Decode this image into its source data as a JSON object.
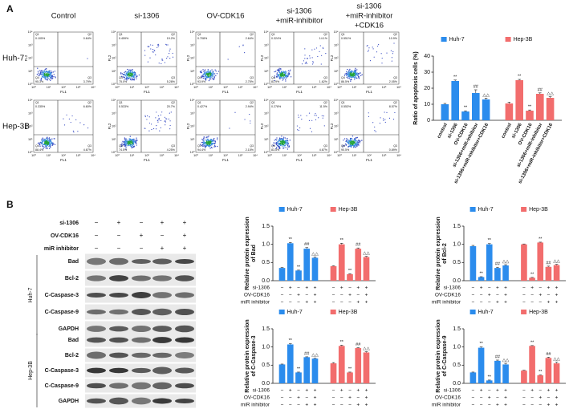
{
  "panels": {
    "a": "A",
    "b": "B"
  },
  "flow": {
    "columns": [
      [
        "Control"
      ],
      [
        "si-1306"
      ],
      [
        "OV-CDK16"
      ],
      [
        "si-1306",
        "+miR-inhibitor"
      ],
      [
        "si-1306",
        "+miR-inhibitor",
        "+CDK16"
      ]
    ],
    "quadrant_names": [
      "Q1",
      "Q2",
      "Q3",
      "Q4"
    ],
    "axis_ticks": [
      "10⁰",
      "10¹",
      "10²",
      "10³",
      "10⁴"
    ],
    "x_label": "FL1",
    "y_label": "FL2",
    "rows": [
      {
        "name": "Huh-7",
        "plots": [
          [
            "0.105%",
            "0.64%",
            "3.79%",
            "95.3%"
          ],
          [
            "0.459%",
            "19.2%",
            "5.28%",
            "75.0%"
          ],
          [
            "0.708%",
            "2.64%",
            "2.75%",
            "93.9%"
          ],
          [
            "0.324%",
            "14.1%",
            "1.62%",
            "83.9%"
          ],
          [
            "0.551%",
            "10.9%",
            "2.05%",
            "86.5%"
          ]
        ]
      },
      {
        "name": "Hep-3B",
        "plots": [
          [
            "0.335%",
            "6.60%",
            "4.67%",
            "88.4%"
          ],
          [
            "0.533%",
            "20.7%",
            "4.25%",
            "74.5%"
          ],
          [
            "0.427%",
            "2.94%",
            "2.15%",
            "94.4%"
          ],
          [
            "0.278%",
            "11.5%",
            "4.67%",
            "83.5%"
          ],
          [
            "0.553%",
            "8.57%",
            "0.89%",
            "90.5%"
          ]
        ]
      }
    ]
  },
  "treatments": [
    {
      "name": "si-1306",
      "signs": [
        "−",
        "+",
        "−",
        "+",
        "+"
      ]
    },
    {
      "name": "OV-CDK16",
      "signs": [
        "−",
        "−",
        "+",
        "−",
        "+"
      ]
    },
    {
      "name": "miR inhibitor",
      "signs": [
        "−",
        "−",
        "−",
        "+",
        "+"
      ]
    }
  ],
  "blot": {
    "cell_lines": [
      "Huh-7",
      "Hep-3B"
    ],
    "proteins": [
      "Bad",
      "Bcl-2",
      "C-Caspase-3",
      "C-Caspase-9",
      "GAPDH"
    ]
  },
  "chart_data": [
    {
      "type": "bar",
      "ylabel": "Ratio of apoptosis cells (%)",
      "ylim": [
        0,
        40
      ],
      "yticks": [
        0,
        10,
        20,
        30,
        40
      ],
      "legend": "top",
      "categories": [
        "control",
        "si-1306",
        "OV-CDK16",
        "si-1306+miR-inhibitor",
        "si-1306+miR-inhibitor+CDK16"
      ],
      "annotations": [
        null,
        "**",
        "**",
        "##",
        "△△"
      ],
      "series": [
        {
          "name": "Huh-7",
          "color": "#2b8ced",
          "values": [
            10,
            24.5,
            5.5,
            17,
            13
          ],
          "errors": [
            0.5,
            0.6,
            0.4,
            2,
            0.8
          ]
        },
        {
          "name": "Hep-3B",
          "color": "#f26d6d",
          "values": [
            10.5,
            25,
            6,
            16.5,
            14
          ],
          "errors": [
            0.8,
            0.5,
            0.4,
            0.6,
            0.7
          ]
        }
      ]
    },
    {
      "type": "bar",
      "ylabel": [
        "Relative protein expression",
        "of Bad"
      ],
      "ylim": [
        0,
        1.5
      ],
      "yticks": [
        {
          "value": 0,
          "label": "0.0"
        },
        0.5,
        {
          "value": 1,
          "label": "1.0"
        },
        1.5
      ],
      "legend": "top",
      "annotations": [
        null,
        "**",
        "**",
        "##",
        "△△"
      ],
      "series": [
        {
          "name": "Huh-7",
          "color": "#2b8ced",
          "values": [
            0.35,
            1.03,
            0.28,
            0.88,
            0.63
          ],
          "errors": [
            0.01,
            0.02,
            0.01,
            0.03,
            0.02
          ]
        },
        {
          "name": "Hep-3B",
          "color": "#f26d6d",
          "values": [
            0.4,
            1.0,
            0.18,
            0.88,
            0.65
          ],
          "errors": [
            0.01,
            0.03,
            0.01,
            0.02,
            0.02
          ]
        }
      ]
    },
    {
      "type": "bar",
      "ylabel": [
        "Relative protein expression",
        "of Bcl-2"
      ],
      "ylim": [
        0,
        1.5
      ],
      "yticks": [
        {
          "value": 0,
          "label": "0.0"
        },
        0.5,
        {
          "value": 1,
          "label": "1.0"
        },
        1.5
      ],
      "legend": "top",
      "annotations": [
        null,
        "**",
        "**",
        "##",
        "△△"
      ],
      "series": [
        {
          "name": "Huh-7",
          "color": "#2b8ced",
          "values": [
            0.95,
            0.1,
            1.0,
            0.35,
            0.42
          ],
          "errors": [
            0.02,
            0.01,
            0.02,
            0.02,
            0.02
          ]
        },
        {
          "name": "Hep-3B",
          "color": "#f26d6d",
          "values": [
            1.0,
            0.08,
            1.05,
            0.38,
            0.43
          ],
          "errors": [
            0.01,
            0.01,
            0.01,
            0.02,
            0.02
          ]
        }
      ]
    },
    {
      "type": "bar",
      "ylabel": [
        "Relative protein expression",
        "of C-Caspase-3"
      ],
      "ylim": [
        0,
        1.5
      ],
      "yticks": [
        {
          "value": 0,
          "label": "0.0"
        },
        0.5,
        {
          "value": 1,
          "label": "1.0"
        },
        1.5
      ],
      "legend": "top",
      "annotations": [
        null,
        "**",
        "**",
        "##",
        "△△"
      ],
      "series": [
        {
          "name": "Huh-7",
          "color": "#2b8ced",
          "values": [
            0.52,
            1.07,
            0.3,
            0.72,
            0.68
          ],
          "errors": [
            0.01,
            0.02,
            0.01,
            0.01,
            0.01
          ]
        },
        {
          "name": "Hep-3B",
          "color": "#f26d6d",
          "values": [
            0.55,
            1.03,
            0.3,
            0.97,
            0.85
          ],
          "errors": [
            0.02,
            0.02,
            0.01,
            0.01,
            0.02
          ]
        }
      ]
    },
    {
      "type": "bar",
      "ylabel": [
        "Relative protein expression",
        "of C-Caspase-9"
      ],
      "ylim": [
        0,
        1.5
      ],
      "yticks": [
        {
          "value": 0,
          "label": "0.0"
        },
        0.5,
        {
          "value": 1,
          "label": "1.0"
        },
        1.5
      ],
      "legend": "top",
      "annotations": [
        null,
        "**",
        "**",
        "##",
        "△△"
      ],
      "series": [
        {
          "name": "Huh-7",
          "color": "#2b8ced",
          "values": [
            0.3,
            0.98,
            0.08,
            0.62,
            0.52
          ],
          "errors": [
            0.01,
            0.02,
            0.01,
            0.02,
            0.03
          ]
        },
        {
          "name": "Hep-3B",
          "color": "#f26d6d",
          "values": [
            0.35,
            1.03,
            0.22,
            0.7,
            0.55
          ],
          "errors": [
            0.01,
            0.01,
            0.01,
            0.02,
            0.03
          ]
        }
      ]
    }
  ]
}
